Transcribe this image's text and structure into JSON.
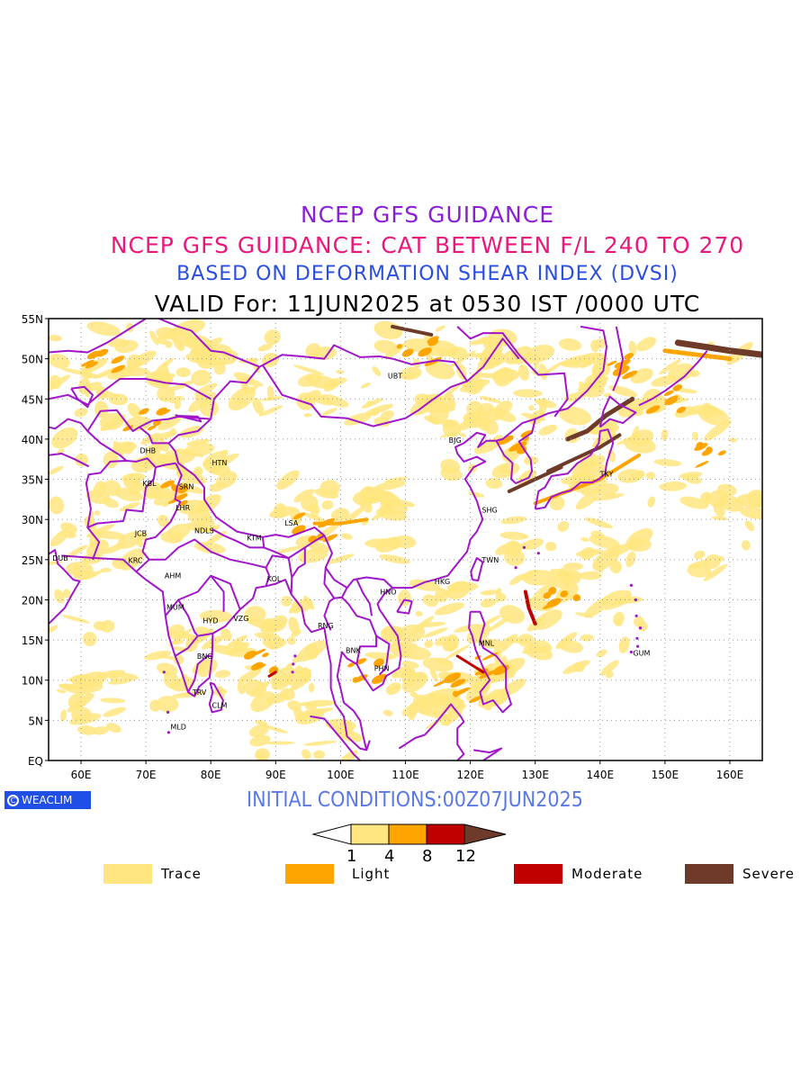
{
  "titles": {
    "line1": "NCEP GFS GUIDANCE",
    "line2": "NCEP GFS GUIDANCE: CAT BETWEEN F/L 240 TO 270",
    "line3": "BASED ON DEFORMATION SHEAR INDEX (DVSI)",
    "line4": "VALID For: 11JUN2025 at 0530 IST /0000 UTC"
  },
  "map": {
    "lon_range": [
      55,
      165
    ],
    "lat_range": [
      0,
      55
    ],
    "x_ticks": [
      "60E",
      "70E",
      "80E",
      "90E",
      "100E",
      "110E",
      "120E",
      "130E",
      "140E",
      "150E",
      "160E"
    ],
    "y_ticks": [
      "EQ",
      "5N",
      "10N",
      "15N",
      "20N",
      "25N",
      "30N",
      "35N",
      "40N",
      "45N",
      "50N",
      "55N"
    ],
    "colors": {
      "trace": "#ffe680",
      "light": "#ffa500",
      "moderate": "#c00000",
      "severe": "#6e3a2a",
      "borders": "#a016c8"
    },
    "cities": [
      {
        "code": "UBT",
        "lon": 107,
        "lat": 47.9
      },
      {
        "code": "BJG",
        "lon": 116.4,
        "lat": 39.9
      },
      {
        "code": "TKY",
        "lon": 139.7,
        "lat": 35.7
      },
      {
        "code": "SHG",
        "lon": 121.5,
        "lat": 31.2
      },
      {
        "code": "TWN",
        "lon": 121.5,
        "lat": 25
      },
      {
        "code": "HKG",
        "lon": 114.2,
        "lat": 22.3
      },
      {
        "code": "HNO",
        "lon": 105.8,
        "lat": 21
      },
      {
        "code": "MNL",
        "lon": 121,
        "lat": 14.6
      },
      {
        "code": "GUM",
        "lon": 144.8,
        "lat": 13.4
      },
      {
        "code": "BNK",
        "lon": 100.5,
        "lat": 13.7
      },
      {
        "code": "PHN",
        "lon": 104.9,
        "lat": 11.5
      },
      {
        "code": "RNG",
        "lon": 96.2,
        "lat": 16.8
      },
      {
        "code": "KOL",
        "lon": 88.4,
        "lat": 22.6
      },
      {
        "code": "LSA",
        "lon": 91.1,
        "lat": 29.6
      },
      {
        "code": "KTM",
        "lon": 85.3,
        "lat": 27.7
      },
      {
        "code": "NDLS",
        "lon": 77.2,
        "lat": 28.6
      },
      {
        "code": "LHR",
        "lon": 74.3,
        "lat": 31.5
      },
      {
        "code": "SRN",
        "lon": 74.8,
        "lat": 34.1
      },
      {
        "code": "HTN",
        "lon": 79.9,
        "lat": 37.1
      },
      {
        "code": "DHB",
        "lon": 68.8,
        "lat": 38.6
      },
      {
        "code": "KBL",
        "lon": 69.2,
        "lat": 34.5
      },
      {
        "code": "JCB",
        "lon": 68,
        "lat": 28.3
      },
      {
        "code": "KRC",
        "lon": 67,
        "lat": 24.9
      },
      {
        "code": "DUB",
        "lon": 55.3,
        "lat": 25.2
      },
      {
        "code": "AHM",
        "lon": 72.6,
        "lat": 23
      },
      {
        "code": "MUM",
        "lon": 72.9,
        "lat": 19.1
      },
      {
        "code": "HYD",
        "lon": 78.5,
        "lat": 17.4
      },
      {
        "code": "VZG",
        "lon": 83.2,
        "lat": 17.7
      },
      {
        "code": "BNG",
        "lon": 77.6,
        "lat": 13
      },
      {
        "code": "TRV",
        "lon": 76.9,
        "lat": 8.5
      },
      {
        "code": "CLM",
        "lon": 79.9,
        "lat": 6.9
      },
      {
        "code": "MLD",
        "lon": 73.5,
        "lat": 4.2
      }
    ]
  },
  "init_conditions": "INITIAL CONDITIONS:00Z07JUN2025",
  "logo": "WEACLIM",
  "colorbar": {
    "ticks": [
      "1",
      "4",
      "8",
      "12"
    ],
    "colors": [
      "#ffffff",
      "#ffe680",
      "#ffa500",
      "#c00000",
      "#6e3a2a"
    ]
  },
  "legend": [
    {
      "label": "Trace",
      "color": "#ffe680"
    },
    {
      "label": "Light",
      "color": "#ffa500"
    },
    {
      "label": "Moderate",
      "color": "#c00000"
    },
    {
      "label": "Severe",
      "color": "#6e3a2a"
    }
  ]
}
